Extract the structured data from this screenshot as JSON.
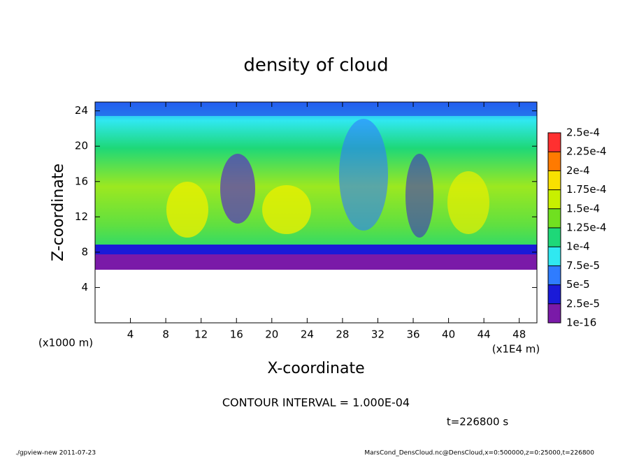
{
  "chart_data": {
    "type": "contour",
    "title": "density of cloud",
    "xlabel": "X-coordinate",
    "ylabel": "Z-coordinate",
    "xunit": "(x1E4 m)",
    "yunit": "(x1000 m)",
    "xlim": [
      0,
      50
    ],
    "xticks": [
      4,
      8,
      12,
      16,
      20,
      24,
      28,
      32,
      36,
      40,
      44,
      48
    ],
    "ylim": [
      0,
      25
    ],
    "yticks": [
      4,
      8,
      12,
      16,
      20,
      24
    ],
    "colorbar": {
      "levels": [
        {
          "value": 1e-16,
          "label": "1e-16"
        },
        {
          "value": 2.5e-05,
          "label": "2.5e-5"
        },
        {
          "value": 5e-05,
          "label": "5e-5"
        },
        {
          "value": 7.5e-05,
          "label": "7.5e-5"
        },
        {
          "value": 0.0001,
          "label": "1e-4"
        },
        {
          "value": 0.000125,
          "label": "1.25e-4"
        },
        {
          "value": 0.00015,
          "label": "1.5e-4"
        },
        {
          "value": 0.000175,
          "label": "1.75e-4"
        },
        {
          "value": 0.0002,
          "label": "2e-4"
        },
        {
          "value": 0.000225,
          "label": "2.25e-4"
        },
        {
          "value": 0.00025,
          "label": "2.5e-4"
        }
      ],
      "colors": [
        "#7a1aa8",
        "#1a1ad8",
        "#2f7cff",
        "#30e8f0",
        "#1ed878",
        "#70e020",
        "#c8f000",
        "#f8e000",
        "#ff7a00",
        "#ff3030"
      ]
    },
    "contour_interval": "CONTOUR INTERVAL = 1.000E-04",
    "time": "t=226800 s",
    "footer_left": "./gpview-new  2011-07-23",
    "footer_right": "MarsCond_DensCloud.nc@DensCloud,x=0:500000,z=0:25000,t=226800"
  }
}
